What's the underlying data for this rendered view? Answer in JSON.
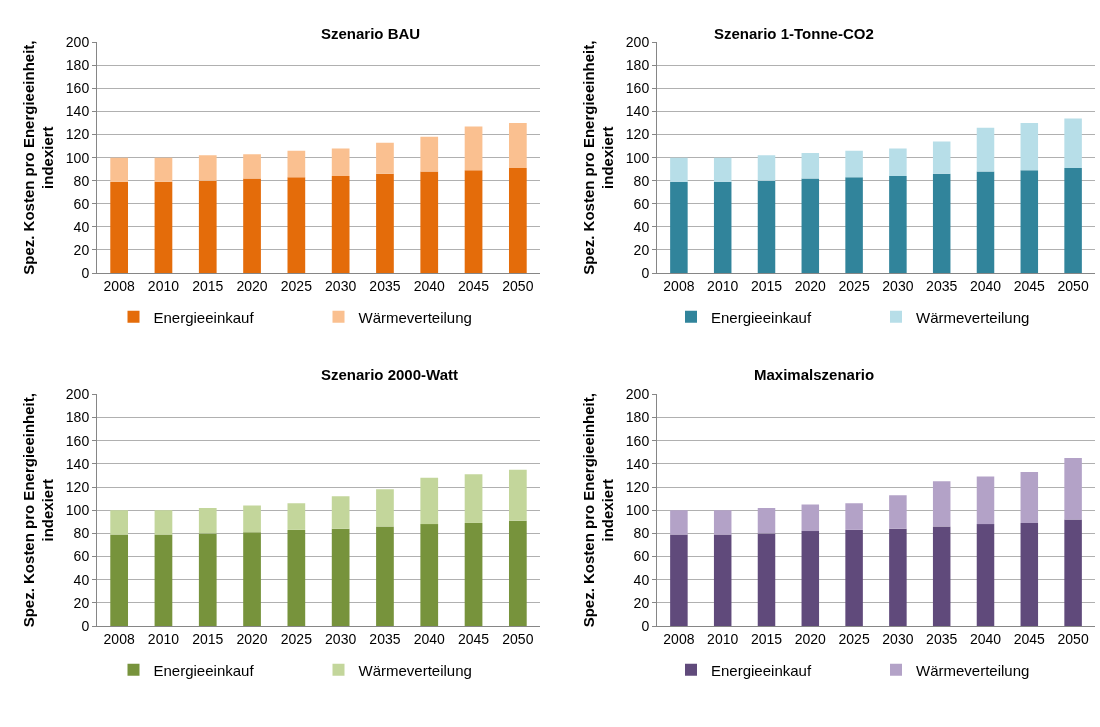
{
  "chart_data": [
    {
      "type": "bar",
      "title": "Szenario BAU",
      "ylabel": "Spez. Kosten pro Energieeinheit, indexiert",
      "categories": [
        "2008",
        "2010",
        "2015",
        "2020",
        "2025",
        "2030",
        "2035",
        "2040",
        "2045",
        "2050"
      ],
      "stacked": true,
      "ylim": [
        0,
        200
      ],
      "yticks": [
        0,
        20,
        40,
        60,
        80,
        100,
        120,
        140,
        160,
        180,
        200
      ],
      "grid": "y",
      "legend": "bottom",
      "series": [
        {
          "name": "Energieeinkauf",
          "color": "#e46c0a",
          "values": [
            79,
            79,
            80,
            82,
            83,
            84,
            86,
            88,
            89,
            91
          ]
        },
        {
          "name": "Wärmeverteilung",
          "color": "#fac090",
          "values": [
            21,
            21,
            22,
            21,
            23,
            24,
            27,
            30,
            38,
            39
          ]
        }
      ]
    },
    {
      "type": "bar",
      "title": "Szenario 1-Tonne-CO2",
      "ylabel": "Spez. Kosten pro Energieeinheit, indexiert",
      "categories": [
        "2008",
        "2010",
        "2015",
        "2020",
        "2025",
        "2030",
        "2035",
        "2040",
        "2045",
        "2050"
      ],
      "stacked": true,
      "ylim": [
        0,
        200
      ],
      "yticks": [
        0,
        20,
        40,
        60,
        80,
        100,
        120,
        140,
        160,
        180,
        200
      ],
      "grid": "y",
      "legend": "bottom",
      "series": [
        {
          "name": "Energieeinkauf",
          "color": "#31849b",
          "values": [
            79,
            79,
            80,
            82,
            83,
            84,
            86,
            88,
            89,
            91
          ]
        },
        {
          "name": "Wärmeverteilung",
          "color": "#b7dee8",
          "values": [
            21,
            21,
            22,
            22,
            23,
            24,
            28,
            38,
            41,
            43
          ]
        }
      ]
    },
    {
      "type": "bar",
      "title": "Szenario 2000-Watt",
      "ylabel": "Spez. Kosten pro Energieeinheit, indexiert",
      "categories": [
        "2008",
        "2010",
        "2015",
        "2020",
        "2025",
        "2030",
        "2035",
        "2040",
        "2045",
        "2050"
      ],
      "stacked": true,
      "ylim": [
        0,
        200
      ],
      "yticks": [
        0,
        20,
        40,
        60,
        80,
        100,
        120,
        140,
        160,
        180,
        200
      ],
      "grid": "y",
      "legend": "bottom",
      "series": [
        {
          "name": "Energieeinkauf",
          "color": "#77933c",
          "values": [
            79,
            79,
            80,
            81,
            83,
            84,
            86,
            88,
            89,
            91
          ]
        },
        {
          "name": "Wärmeverteilung",
          "color": "#c3d69b",
          "values": [
            21,
            21,
            22,
            23,
            23,
            28,
            32,
            40,
            42,
            44
          ]
        }
      ]
    },
    {
      "type": "bar",
      "title": "Maximalszenario",
      "ylabel": "Spez. Kosten pro Energieeinheit, indexiert",
      "categories": [
        "2008",
        "2010",
        "2015",
        "2020",
        "2025",
        "2030",
        "2035",
        "2040",
        "2045",
        "2050"
      ],
      "stacked": true,
      "ylim": [
        0,
        200
      ],
      "yticks": [
        0,
        20,
        40,
        60,
        80,
        100,
        120,
        140,
        160,
        180,
        200
      ],
      "grid": "y",
      "legend": "bottom",
      "series": [
        {
          "name": "Energieeinkauf",
          "color": "#604a7b",
          "values": [
            79,
            79,
            80,
            82,
            83,
            84,
            86,
            88,
            89,
            92
          ]
        },
        {
          "name": "Wärmeverteilung",
          "color": "#b3a2c7",
          "values": [
            21,
            21,
            22,
            23,
            23,
            29,
            39,
            41,
            44,
            53
          ]
        }
      ]
    }
  ]
}
